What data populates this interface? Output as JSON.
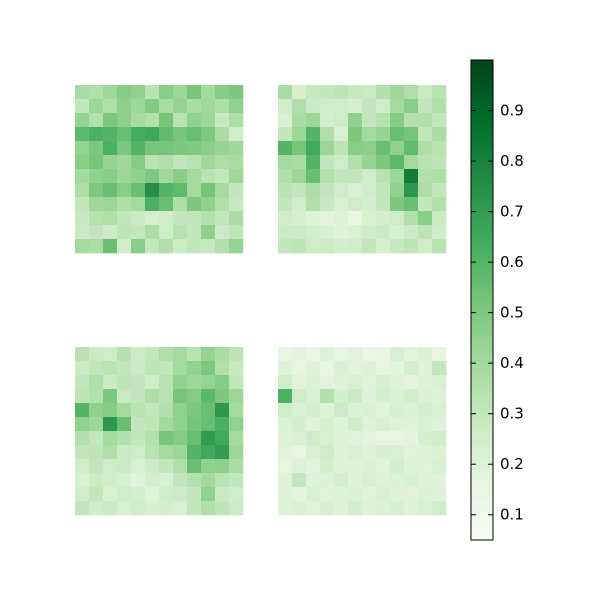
{
  "chart_data": {
    "type": "heatmap",
    "colormap": "Greens",
    "vmin": 0.05,
    "vmax": 1.0,
    "colorbar": {
      "ticks": [
        0.1,
        0.2,
        0.3,
        0.4,
        0.5,
        0.6,
        0.7,
        0.8,
        0.9
      ],
      "tick_labels": [
        "0.1",
        "0.2",
        "0.3",
        "0.4",
        "0.5",
        "0.6",
        "0.7",
        "0.8",
        "0.9"
      ],
      "placement": "right"
    },
    "panels": [
      {
        "rows": 12,
        "cols": 12,
        "values": [
          [
            0.38,
            0.36,
            0.41,
            0.48,
            0.45,
            0.33,
            0.47,
            0.42,
            0.52,
            0.4,
            0.48,
            0.5
          ],
          [
            0.3,
            0.42,
            0.36,
            0.46,
            0.42,
            0.49,
            0.38,
            0.44,
            0.38,
            0.41,
            0.37,
            0.45
          ],
          [
            0.44,
            0.35,
            0.5,
            0.46,
            0.39,
            0.35,
            0.52,
            0.33,
            0.45,
            0.42,
            0.29,
            0.37
          ],
          [
            0.58,
            0.62,
            0.6,
            0.55,
            0.64,
            0.66,
            0.57,
            0.52,
            0.55,
            0.5,
            0.38,
            0.25
          ],
          [
            0.44,
            0.5,
            0.62,
            0.5,
            0.6,
            0.52,
            0.52,
            0.5,
            0.49,
            0.46,
            0.43,
            0.41
          ],
          [
            0.47,
            0.52,
            0.43,
            0.41,
            0.48,
            0.33,
            0.36,
            0.3,
            0.33,
            0.41,
            0.37,
            0.38
          ],
          [
            0.4,
            0.45,
            0.47,
            0.42,
            0.45,
            0.5,
            0.41,
            0.47,
            0.4,
            0.33,
            0.3,
            0.41
          ],
          [
            0.37,
            0.5,
            0.55,
            0.47,
            0.55,
            0.75,
            0.6,
            0.57,
            0.4,
            0.52,
            0.39,
            0.3
          ],
          [
            0.3,
            0.41,
            0.42,
            0.37,
            0.4,
            0.62,
            0.55,
            0.37,
            0.5,
            0.45,
            0.36,
            0.29
          ],
          [
            0.29,
            0.34,
            0.36,
            0.3,
            0.28,
            0.23,
            0.25,
            0.3,
            0.31,
            0.35,
            0.3,
            0.38
          ],
          [
            0.27,
            0.3,
            0.26,
            0.32,
            0.3,
            0.37,
            0.26,
            0.34,
            0.3,
            0.45,
            0.27,
            0.32
          ],
          [
            0.4,
            0.38,
            0.55,
            0.25,
            0.47,
            0.3,
            0.36,
            0.27,
            0.3,
            0.29,
            0.35,
            0.44
          ]
        ]
      },
      {
        "rows": 12,
        "cols": 12,
        "values": [
          [
            0.38,
            0.23,
            0.29,
            0.3,
            0.32,
            0.29,
            0.28,
            0.35,
            0.41,
            0.36,
            0.28,
            0.33
          ],
          [
            0.25,
            0.36,
            0.28,
            0.26,
            0.25,
            0.23,
            0.3,
            0.26,
            0.39,
            0.47,
            0.3,
            0.36
          ],
          [
            0.22,
            0.38,
            0.42,
            0.24,
            0.26,
            0.45,
            0.3,
            0.34,
            0.48,
            0.35,
            0.36,
            0.3
          ],
          [
            0.3,
            0.42,
            0.6,
            0.36,
            0.22,
            0.5,
            0.4,
            0.43,
            0.55,
            0.52,
            0.31,
            0.38
          ],
          [
            0.6,
            0.52,
            0.65,
            0.42,
            0.32,
            0.47,
            0.46,
            0.55,
            0.45,
            0.57,
            0.37,
            0.33
          ],
          [
            0.4,
            0.38,
            0.6,
            0.3,
            0.26,
            0.35,
            0.44,
            0.5,
            0.58,
            0.4,
            0.33,
            0.32
          ],
          [
            0.36,
            0.42,
            0.55,
            0.35,
            0.3,
            0.3,
            0.26,
            0.34,
            0.42,
            0.82,
            0.35,
            0.37
          ],
          [
            0.33,
            0.31,
            0.37,
            0.3,
            0.26,
            0.22,
            0.25,
            0.3,
            0.45,
            0.72,
            0.37,
            0.3
          ],
          [
            0.3,
            0.25,
            0.36,
            0.29,
            0.22,
            0.26,
            0.24,
            0.3,
            0.5,
            0.55,
            0.3,
            0.35
          ],
          [
            0.25,
            0.23,
            0.2,
            0.18,
            0.2,
            0.16,
            0.22,
            0.24,
            0.26,
            0.36,
            0.47,
            0.28
          ],
          [
            0.28,
            0.27,
            0.24,
            0.22,
            0.2,
            0.22,
            0.25,
            0.28,
            0.22,
            0.27,
            0.32,
            0.25
          ],
          [
            0.3,
            0.32,
            0.26,
            0.27,
            0.24,
            0.25,
            0.3,
            0.23,
            0.29,
            0.32,
            0.25,
            0.33
          ]
        ]
      },
      {
        "rows": 12,
        "cols": 12,
        "values": [
          [
            0.33,
            0.28,
            0.26,
            0.34,
            0.27,
            0.3,
            0.36,
            0.4,
            0.33,
            0.44,
            0.38,
            0.32
          ],
          [
            0.27,
            0.3,
            0.33,
            0.3,
            0.28,
            0.32,
            0.3,
            0.4,
            0.45,
            0.5,
            0.36,
            0.29
          ],
          [
            0.3,
            0.36,
            0.28,
            0.32,
            0.3,
            0.25,
            0.33,
            0.45,
            0.42,
            0.44,
            0.48,
            0.3
          ],
          [
            0.32,
            0.35,
            0.5,
            0.28,
            0.3,
            0.37,
            0.33,
            0.52,
            0.48,
            0.58,
            0.5,
            0.42
          ],
          [
            0.6,
            0.45,
            0.48,
            0.4,
            0.33,
            0.3,
            0.35,
            0.45,
            0.5,
            0.55,
            0.72,
            0.4
          ],
          [
            0.45,
            0.42,
            0.72,
            0.55,
            0.3,
            0.32,
            0.4,
            0.45,
            0.52,
            0.55,
            0.62,
            0.45
          ],
          [
            0.35,
            0.3,
            0.4,
            0.35,
            0.3,
            0.35,
            0.52,
            0.48,
            0.55,
            0.7,
            0.65,
            0.4
          ],
          [
            0.3,
            0.32,
            0.36,
            0.28,
            0.26,
            0.33,
            0.4,
            0.42,
            0.6,
            0.65,
            0.7,
            0.42
          ],
          [
            0.25,
            0.3,
            0.26,
            0.28,
            0.22,
            0.26,
            0.3,
            0.36,
            0.55,
            0.45,
            0.46,
            0.38
          ],
          [
            0.22,
            0.27,
            0.25,
            0.23,
            0.2,
            0.24,
            0.22,
            0.3,
            0.35,
            0.4,
            0.33,
            0.3
          ],
          [
            0.25,
            0.3,
            0.22,
            0.26,
            0.24,
            0.2,
            0.25,
            0.27,
            0.3,
            0.45,
            0.28,
            0.26
          ],
          [
            0.3,
            0.25,
            0.28,
            0.22,
            0.25,
            0.23,
            0.24,
            0.22,
            0.3,
            0.36,
            0.32,
            0.27
          ]
        ]
      },
      {
        "rows": 12,
        "cols": 12,
        "values": [
          [
            0.16,
            0.18,
            0.15,
            0.2,
            0.17,
            0.19,
            0.15,
            0.16,
            0.22,
            0.18,
            0.21,
            0.17
          ],
          [
            0.2,
            0.17,
            0.19,
            0.16,
            0.21,
            0.18,
            0.2,
            0.17,
            0.18,
            0.24,
            0.19,
            0.3
          ],
          [
            0.25,
            0.19,
            0.21,
            0.18,
            0.2,
            0.22,
            0.19,
            0.23,
            0.2,
            0.18,
            0.2,
            0.22
          ],
          [
            0.62,
            0.26,
            0.22,
            0.35,
            0.24,
            0.28,
            0.2,
            0.24,
            0.22,
            0.25,
            0.21,
            0.2
          ],
          [
            0.25,
            0.22,
            0.24,
            0.2,
            0.27,
            0.21,
            0.22,
            0.19,
            0.23,
            0.21,
            0.24,
            0.22
          ],
          [
            0.21,
            0.24,
            0.2,
            0.23,
            0.2,
            0.25,
            0.2,
            0.22,
            0.2,
            0.19,
            0.22,
            0.2
          ],
          [
            0.2,
            0.22,
            0.26,
            0.22,
            0.2,
            0.19,
            0.18,
            0.17,
            0.16,
            0.18,
            0.24,
            0.26
          ],
          [
            0.19,
            0.17,
            0.22,
            0.26,
            0.2,
            0.22,
            0.2,
            0.23,
            0.22,
            0.19,
            0.2,
            0.21
          ],
          [
            0.17,
            0.2,
            0.18,
            0.24,
            0.2,
            0.2,
            0.21,
            0.19,
            0.24,
            0.2,
            0.19,
            0.22
          ],
          [
            0.19,
            0.3,
            0.2,
            0.21,
            0.24,
            0.2,
            0.23,
            0.2,
            0.21,
            0.22,
            0.2,
            0.19
          ],
          [
            0.2,
            0.18,
            0.22,
            0.19,
            0.2,
            0.21,
            0.19,
            0.22,
            0.2,
            0.19,
            0.21,
            0.2
          ],
          [
            0.2,
            0.21,
            0.19,
            0.23,
            0.2,
            0.24,
            0.2,
            0.21,
            0.23,
            0.2,
            0.22,
            0.25
          ]
        ]
      }
    ]
  }
}
